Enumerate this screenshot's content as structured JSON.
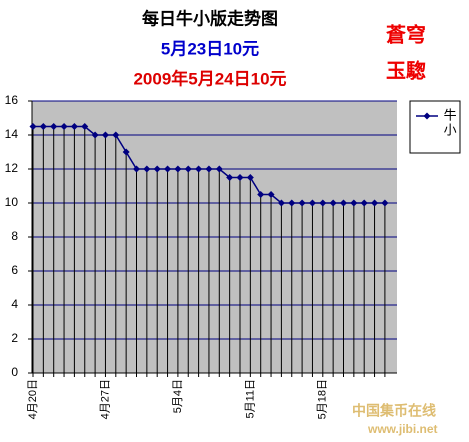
{
  "chart_data": {
    "type": "line",
    "title": "每日牛小版走势图",
    "subtitle": "5月23日10元",
    "subtitle2": "2009年5月24日10元",
    "annotations": [
      "蒼穹",
      "玉騘"
    ],
    "watermark": [
      "中国集币在线",
      "www.jibi.net"
    ],
    "categories": [
      "4月20日",
      null,
      null,
      null,
      null,
      null,
      null,
      "4月27日",
      null,
      null,
      null,
      null,
      null,
      null,
      "5月4日",
      null,
      null,
      null,
      null,
      null,
      null,
      "5月11日",
      null,
      null,
      null,
      null,
      null,
      null,
      "5月18日",
      null,
      null,
      null,
      null,
      null,
      null
    ],
    "series": [
      {
        "name": "牛小",
        "color": "#000080",
        "values": [
          14.5,
          14.5,
          14.5,
          14.5,
          14.5,
          14.5,
          14,
          14,
          14,
          13,
          12,
          12,
          12,
          12,
          12,
          12,
          12,
          12,
          12,
          11.5,
          11.5,
          11.5,
          10.5,
          10.5,
          10,
          10,
          10,
          10,
          10,
          10,
          10,
          10,
          10,
          10,
          10
        ]
      }
    ],
    "ylim": [
      0,
      16
    ],
    "yticks": [
      0,
      2,
      4,
      6,
      8,
      10,
      12,
      14,
      16
    ],
    "grid": true,
    "legend": "right",
    "drop_lines": true
  }
}
